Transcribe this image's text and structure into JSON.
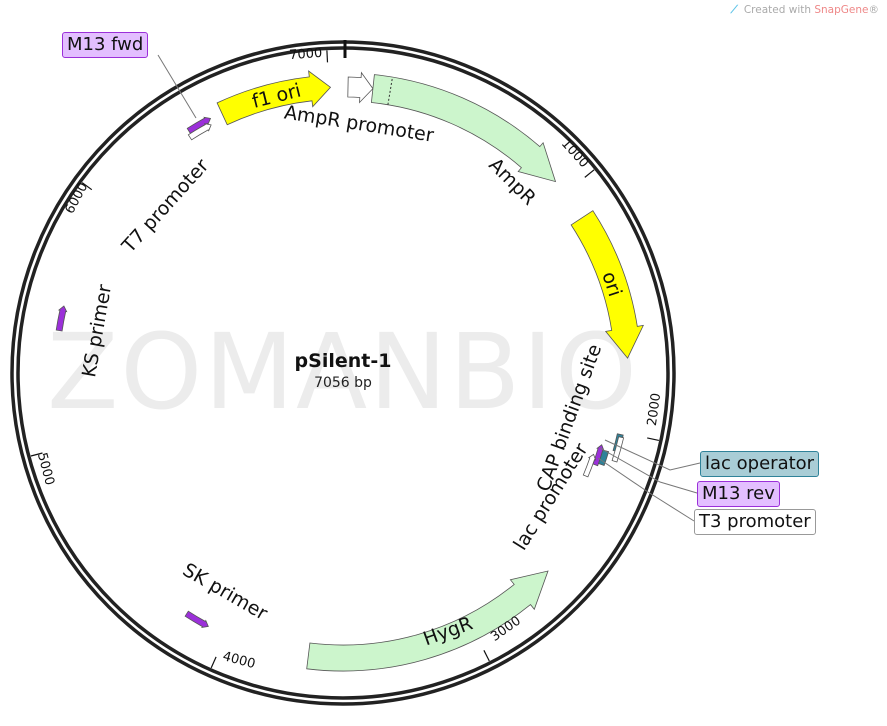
{
  "credit": {
    "prefix": "Created with ",
    "brand": "SnapGene",
    "suffix": "®",
    "icon": "snapgene-logo-icon"
  },
  "watermark": "ZOMANBIO",
  "plasmid": {
    "name": "pSilent-1",
    "length": "7056 bp"
  },
  "ticks": [
    "1000",
    "2000",
    "3000",
    "4000",
    "5000",
    "6000",
    "7000"
  ],
  "features": {
    "f1_ori": "f1 ori",
    "ampr_promoter": "AmpR promoter",
    "ampr": "AmpR",
    "ori": "ori",
    "cap_site": "CAP binding site",
    "lac_promoter": "lac promoter",
    "hygr": "HygR",
    "sk_primer": "SK primer",
    "ks_primer": "KS primer",
    "t7_promoter": "T7 promoter"
  },
  "callouts": {
    "m13_fwd": "M13 fwd",
    "lac_operator": "lac operator",
    "m13_rev": "M13 rev",
    "t3_promoter": "T3 promoter"
  },
  "colors": {
    "origin": "#ffff00",
    "gene": "#ccf5cc",
    "primer": "#9b30d9",
    "primer_box": "#e3bfff",
    "operator": "#2f8299",
    "operator_box": "#a9cdd6",
    "promoter": "#ffffff"
  }
}
